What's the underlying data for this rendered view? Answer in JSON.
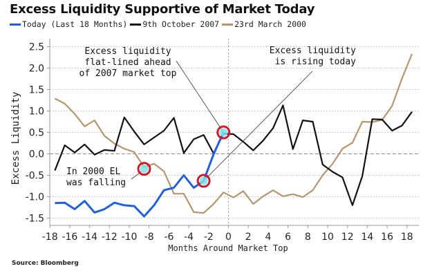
{
  "chart_data": {
    "type": "line",
    "title": "Excess Liquidity Supportive of Market Today",
    "xlabel": "Months Around Market Top",
    "ylabel": "Excess Liquidity",
    "xlim": [
      -18,
      18
    ],
    "ylim": [
      -1.5,
      2.5
    ],
    "x_ticks": [
      -18,
      -16,
      -14,
      -12,
      -10,
      -8,
      -6,
      -4,
      -2,
      0,
      2,
      4,
      6,
      8,
      10,
      12,
      14,
      16,
      18
    ],
    "y_ticks": [
      -1.5,
      -1.0,
      -0.5,
      0.0,
      0.5,
      1.0,
      1.5,
      2.0,
      2.5
    ],
    "y_tick_labels": [
      "-1.5",
      "-1.0",
      "-0.5",
      "0.0",
      "0.5",
      "1.0",
      "1.5",
      "2.0",
      "2.5"
    ],
    "grid": true,
    "legend_position": "top-left",
    "x": [
      -17.5,
      -16.5,
      -15.5,
      -14.5,
      -13.5,
      -12.5,
      -11.5,
      -10.5,
      -9.5,
      -8.5,
      -7.5,
      -6.5,
      -5.5,
      -4.5,
      -3.5,
      -2.5,
      -1.5,
      -0.5,
      0.5,
      1.5,
      2.5,
      3.5,
      4.5,
      5.5,
      6.5,
      7.5,
      8.5,
      9.5,
      10.5,
      11.5,
      12.5,
      13.5,
      14.5,
      15.5,
      16.5,
      17.5,
      18.5
    ],
    "series": [
      {
        "name": "Today (Last 18 Months)",
        "color": "#1f5fe0",
        "values": [
          -1.15,
          -1.14,
          -1.29,
          -1.1,
          -1.37,
          -1.29,
          -1.14,
          -1.2,
          -1.22,
          -1.46,
          -1.2,
          -0.85,
          -0.79,
          -0.5,
          -0.79,
          -0.63,
          -0.01,
          0.5
        ]
      },
      {
        "name": "9th October 2007",
        "color": "#111111",
        "values": [
          -0.39,
          0.2,
          0.03,
          0.22,
          -0.02,
          0.09,
          0.07,
          0.85,
          0.52,
          0.22,
          0.38,
          0.54,
          0.84,
          0.02,
          0.34,
          0.44,
          0.01,
          0.47,
          0.46,
          0.28,
          0.08,
          0.31,
          0.6,
          1.13,
          0.11,
          0.78,
          0.75,
          -0.25,
          -0.42,
          -0.55,
          -1.2,
          -0.52,
          0.81,
          0.8,
          0.54,
          0.66,
          0.98
        ]
      },
      {
        "name": "23rd March 2000",
        "color": "#b8956a",
        "values": [
          1.29,
          1.17,
          0.93,
          0.64,
          0.78,
          0.42,
          0.24,
          0.12,
          0.04,
          -0.31,
          -0.23,
          -0.41,
          -0.93,
          -0.93,
          -1.36,
          -1.38,
          -1.17,
          -0.9,
          -1.02,
          -0.87,
          -1.17,
          -0.99,
          -0.85,
          -0.99,
          -0.94,
          -1.01,
          -0.85,
          -0.5,
          -0.23,
          0.12,
          0.26,
          0.75,
          0.74,
          0.79,
          1.12,
          1.76,
          2.33
        ]
      }
    ],
    "annotations": [
      {
        "lines": [
          "Excess liquidity",
          "flat-lined ahead",
          "of 2007 market top"
        ],
        "target_x": -0.5,
        "target_y": 0.5
      },
      {
        "lines": [
          "Excess liquidity",
          "is rising today"
        ],
        "target_x": -2.5,
        "target_y": -0.63
      },
      {
        "lines": [
          "In 2000 EL",
          "was falling"
        ],
        "target_x": -8.5,
        "target_y": -0.35
      }
    ],
    "source": "Source: Bloomberg"
  },
  "legend": [
    {
      "label": "Today (Last 18 Months)",
      "color": "#1f5fe0"
    },
    {
      "label": "9th October 2007",
      "color": "#111111"
    },
    {
      "label": "23rd March 2000",
      "color": "#b8956a"
    }
  ]
}
